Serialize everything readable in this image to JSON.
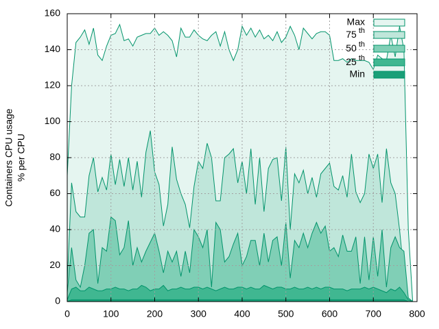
{
  "chart_data": {
    "type": "area",
    "ylabel": [
      "Containers CPU usage",
      "% per CPU"
    ],
    "x": [
      0,
      10,
      20,
      30,
      40,
      50,
      60,
      70,
      80,
      90,
      100,
      110,
      120,
      130,
      140,
      150,
      160,
      170,
      180,
      190,
      200,
      210,
      220,
      230,
      240,
      250,
      260,
      270,
      280,
      290,
      300,
      310,
      320,
      330,
      340,
      350,
      360,
      370,
      380,
      390,
      400,
      410,
      420,
      430,
      440,
      450,
      460,
      470,
      480,
      490,
      500,
      510,
      520,
      530,
      540,
      550,
      560,
      570,
      580,
      590,
      600,
      610,
      620,
      630,
      640,
      650,
      660,
      670,
      680,
      690,
      700,
      710,
      720,
      730,
      740,
      750,
      760,
      770,
      780,
      790
    ],
    "xlim": [
      0,
      800
    ],
    "xticks": [
      0,
      100,
      200,
      300,
      400,
      500,
      600,
      700,
      800
    ],
    "ylim": [
      0,
      160
    ],
    "yticks": [
      0,
      20,
      40,
      60,
      80,
      100,
      120,
      140,
      160
    ],
    "grid": true,
    "legend": "top-right",
    "line_color": "#00936a",
    "series": [
      {
        "name": "Max",
        "color": "#e5f5f0",
        "values": [
          70,
          120,
          144,
          147,
          151,
          143,
          152,
          137,
          134,
          142,
          148,
          149,
          154,
          145,
          146,
          142,
          147,
          148,
          149,
          149,
          152,
          148,
          150,
          148,
          145,
          136,
          152,
          147,
          147,
          151,
          148,
          146,
          145,
          148,
          150,
          142,
          150,
          140,
          134,
          140,
          153,
          148,
          152,
          147,
          151,
          146,
          148,
          145,
          150,
          144,
          147,
          153,
          148,
          140,
          152,
          149,
          146,
          149,
          150,
          150,
          148,
          134,
          134,
          135,
          133,
          135,
          134,
          134,
          134,
          133,
          129,
          137,
          135,
          134,
          148,
          136,
          153,
          140,
          40,
          0
        ]
      },
      {
        "name": "75th",
        "color": "#bfe6da",
        "values": [
          10,
          66,
          50,
          47,
          47,
          70,
          80,
          61,
          69,
          62,
          82,
          65,
          79,
          64,
          80,
          62,
          78,
          58,
          83,
          95,
          72,
          65,
          42,
          54,
          86,
          68,
          60,
          54,
          41,
          64,
          78,
          74,
          88,
          80,
          56,
          56,
          80,
          82,
          85,
          66,
          78,
          60,
          85,
          54,
          80,
          50,
          74,
          79,
          80,
          56,
          86,
          40,
          71,
          66,
          73,
          60,
          69,
          58,
          71,
          74,
          77,
          64,
          62,
          70,
          58,
          82,
          61,
          55,
          60,
          82,
          74,
          82,
          55,
          85,
          66,
          60,
          40,
          15,
          2,
          0
        ]
      },
      {
        "name": "50th",
        "color": "#80cfb6",
        "values": [
          5,
          30,
          12,
          8,
          20,
          38,
          40,
          10,
          30,
          28,
          47,
          45,
          26,
          30,
          45,
          20,
          30,
          22,
          28,
          33,
          38,
          28,
          16,
          28,
          22,
          28,
          14,
          28,
          16,
          40,
          36,
          30,
          40,
          8,
          44,
          40,
          22,
          25,
          32,
          38,
          20,
          25,
          34,
          34,
          20,
          38,
          22,
          34,
          36,
          20,
          44,
          13,
          34,
          30,
          38,
          30,
          38,
          44,
          38,
          42,
          28,
          30,
          25,
          37,
          28,
          28,
          36,
          10,
          36,
          12,
          36,
          14,
          40,
          8,
          30,
          36,
          30,
          28,
          2,
          0
        ]
      },
      {
        "name": "25th",
        "color": "#40b791",
        "values": [
          1,
          7,
          8,
          6,
          6,
          8,
          7,
          6,
          6,
          7,
          7,
          8,
          7,
          7,
          6,
          7,
          7,
          9,
          8,
          6,
          7,
          7,
          9,
          6,
          7,
          7,
          8,
          7,
          7,
          8,
          8,
          7,
          8,
          7,
          6,
          7,
          8,
          7,
          7,
          8,
          8,
          7,
          8,
          7,
          7,
          9,
          8,
          7,
          8,
          8,
          7,
          7,
          8,
          7,
          7,
          8,
          7,
          8,
          7,
          8,
          8,
          7,
          7,
          7,
          6,
          7,
          7,
          7,
          8,
          7,
          8,
          7,
          6,
          5,
          7,
          6,
          8,
          5,
          1,
          0
        ]
      },
      {
        "name": "Min",
        "color": "#1a9f78",
        "values": [
          0,
          1,
          1,
          1,
          1,
          1,
          1,
          1,
          1,
          1,
          1,
          1,
          1,
          1,
          1,
          1,
          1,
          1,
          1,
          1,
          1,
          1,
          1,
          1,
          1,
          1,
          1,
          1,
          1,
          1,
          1,
          1,
          1,
          1,
          1,
          1,
          1,
          1,
          1,
          1,
          1,
          1,
          1,
          1,
          1,
          1,
          1,
          1,
          1,
          1,
          1,
          1,
          1,
          1,
          1,
          1,
          1,
          1,
          1,
          1,
          1,
          1,
          1,
          1,
          1,
          1,
          1,
          1,
          1,
          1,
          1,
          1,
          1,
          1,
          1,
          1,
          1,
          1,
          0,
          0
        ]
      }
    ]
  }
}
